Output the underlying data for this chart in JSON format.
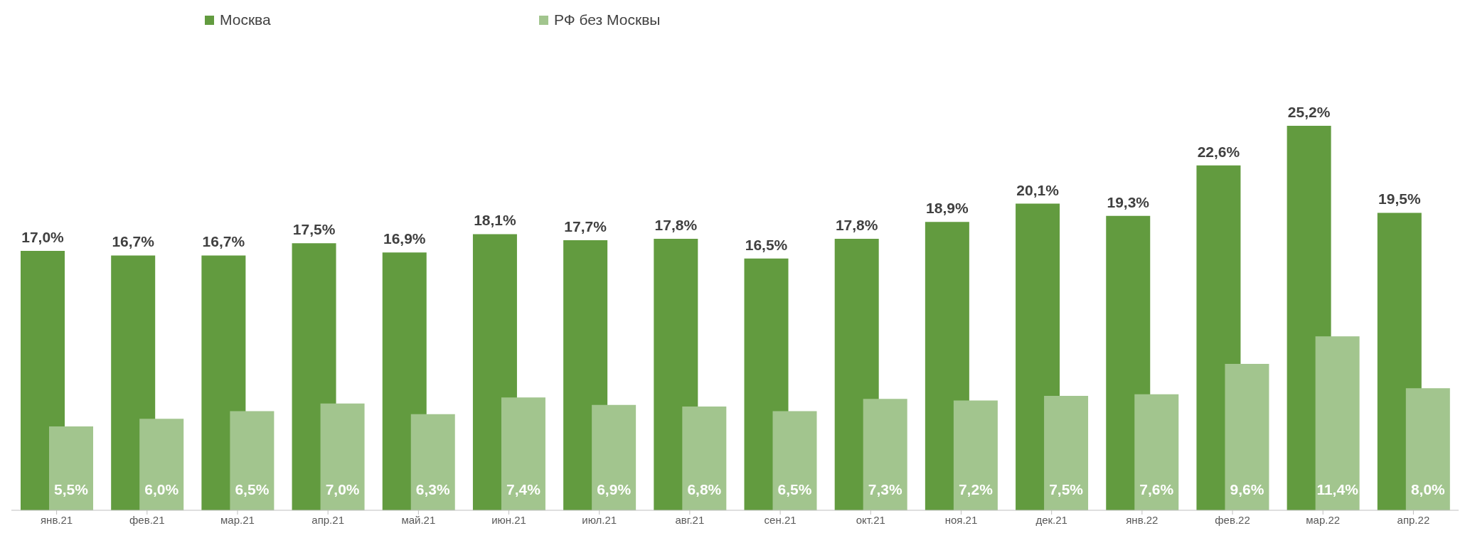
{
  "chart_data": {
    "type": "bar",
    "legend": "top left",
    "categories": [
      "янв.21",
      "фев.21",
      "мар.21",
      "апр.21",
      "май.21",
      "июн.21",
      "июл.21",
      "авг.21",
      "сен.21",
      "окт.21",
      "ноя.21",
      "дек.21",
      "янв.22",
      "фев.22",
      "мар.22",
      "апр.22"
    ],
    "series": [
      {
        "name": "Москва",
        "color": "#629b3f",
        "values": [
          17.0,
          16.7,
          16.7,
          17.5,
          16.9,
          18.1,
          17.7,
          17.8,
          16.5,
          17.8,
          18.9,
          20.1,
          19.3,
          22.6,
          25.2,
          19.5
        ],
        "value_labels": [
          "17,0%",
          "16,7%",
          "16,7%",
          "17,5%",
          "16,9%",
          "18,1%",
          "17,7%",
          "17,8%",
          "16,5%",
          "17,8%",
          "18,9%",
          "20,1%",
          "19,3%",
          "22,6%",
          "25,2%",
          "19,5%"
        ]
      },
      {
        "name": "РФ без Москвы",
        "color": "#a2c58e",
        "values": [
          5.5,
          6.0,
          6.5,
          7.0,
          6.3,
          7.4,
          6.9,
          6.8,
          6.5,
          7.3,
          7.2,
          7.5,
          7.6,
          9.6,
          11.4,
          8.0
        ],
        "value_labels": [
          "5,5%",
          "6,0%",
          "6,5%",
          "7,0%",
          "6,3%",
          "7,4%",
          "6,9%",
          "6,8%",
          "6,5%",
          "7,3%",
          "7,2%",
          "7,5%",
          "7,6%",
          "9,6%",
          "11,4%",
          "8,0%"
        ]
      }
    ]
  }
}
